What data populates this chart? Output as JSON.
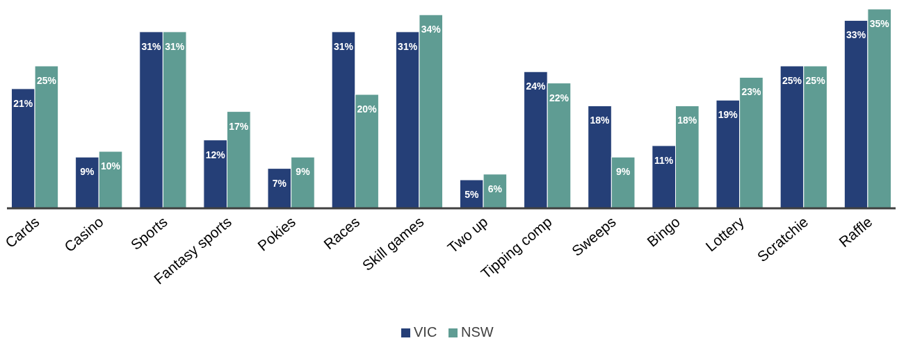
{
  "chart_data": {
    "type": "bar",
    "categories": [
      "Cards",
      "Casino",
      "Sports",
      "Fantasy sports",
      "Pokies",
      "Races",
      "Skill games",
      "Two up",
      "Tipping comp",
      "Sweeps",
      "Bingo",
      "Lottery",
      "Scratchie",
      "Raffle"
    ],
    "series": [
      {
        "name": "VIC",
        "color": "#253f77",
        "values": [
          21,
          9,
          31,
          12,
          7,
          31,
          31,
          5,
          24,
          18,
          11,
          19,
          25,
          33
        ],
        "value_labels": [
          "21%",
          "9%",
          "31%",
          "12%",
          "7%",
          "31%",
          "31%",
          "5%",
          "24%",
          "18%",
          "11%",
          "19%",
          "25%",
          "33%"
        ]
      },
      {
        "name": "NSW",
        "color": "#5f9c93",
        "values": [
          25,
          10,
          31,
          17,
          9,
          20,
          34,
          6,
          22,
          9,
          18,
          23,
          25,
          35
        ],
        "value_labels": [
          "25%",
          "10%",
          "31%",
          "17%",
          "9%",
          "20%",
          "34%",
          "6%",
          "22%",
          "9%",
          "18%",
          "23%",
          "25%",
          "35%"
        ]
      }
    ],
    "ylim": [
      0,
      35
    ],
    "tick_labels": "x",
    "legend": "bottom"
  }
}
